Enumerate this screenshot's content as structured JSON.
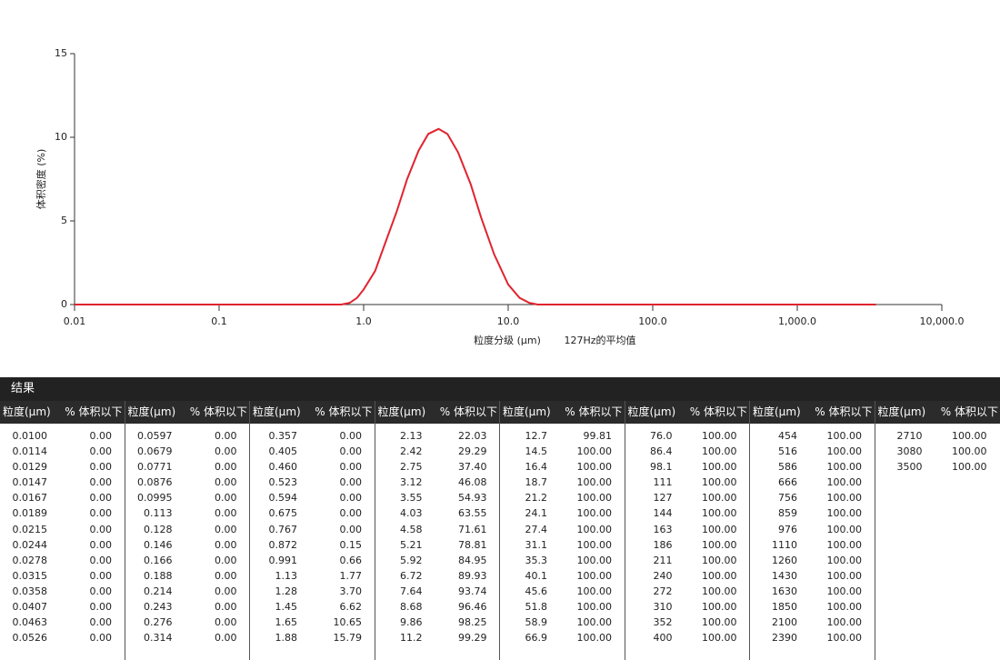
{
  "chart_data": {
    "type": "line",
    "y_label": "体积密度 (%)",
    "x_label": "粒度分级 (μm)",
    "x_note": "127Hz的平均值",
    "log_x": true,
    "color": "#e0242f",
    "x": [
      0.01,
      0.1,
      0.7,
      0.8,
      0.9,
      1.0,
      1.2,
      1.4,
      1.7,
      2.0,
      2.4,
      2.8,
      3.3,
      3.8,
      4.5,
      5.5,
      6.5,
      8,
      10,
      12,
      14,
      16,
      100,
      1000,
      3500
    ],
    "values": [
      0,
      0,
      0,
      0.1,
      0.4,
      0.9,
      2.0,
      3.6,
      5.6,
      7.5,
      9.2,
      10.2,
      10.5,
      10.2,
      9.1,
      7.2,
      5.2,
      3.0,
      1.2,
      0.4,
      0.1,
      0,
      0,
      0,
      0
    ],
    "xlim": [
      0.01,
      10000
    ],
    "ylim": [
      0,
      15
    ],
    "xticks": [
      0.01,
      0.1,
      {
        "value": 1,
        "label": "1.0"
      },
      {
        "value": 10,
        "label": "10.0"
      },
      {
        "value": 100,
        "label": "100.0"
      },
      {
        "value": 1000,
        "label": "1,000.0"
      },
      {
        "value": 10000,
        "label": "10,000.0"
      }
    ],
    "yticks": [
      0,
      5,
      10,
      15
    ]
  },
  "table": {
    "title": "结果",
    "groups": [
      {
        "header": [
          "粒度(μm)",
          "% 体积以下"
        ],
        "rows": [
          [
            "0.0100",
            "0.00"
          ],
          [
            "0.0114",
            "0.00"
          ],
          [
            "0.0129",
            "0.00"
          ],
          [
            "0.0147",
            "0.00"
          ],
          [
            "0.0167",
            "0.00"
          ],
          [
            "0.0189",
            "0.00"
          ],
          [
            "0.0215",
            "0.00"
          ],
          [
            "0.0244",
            "0.00"
          ],
          [
            "0.0278",
            "0.00"
          ],
          [
            "0.0315",
            "0.00"
          ],
          [
            "0.0358",
            "0.00"
          ],
          [
            "0.0407",
            "0.00"
          ],
          [
            "0.0463",
            "0.00"
          ],
          [
            "0.0526",
            "0.00"
          ]
        ]
      },
      {
        "header": [
          "粒度(μm)",
          "% 体积以下"
        ],
        "rows": [
          [
            "0.0597",
            "0.00"
          ],
          [
            "0.0679",
            "0.00"
          ],
          [
            "0.0771",
            "0.00"
          ],
          [
            "0.0876",
            "0.00"
          ],
          [
            "0.0995",
            "0.00"
          ],
          [
            "0.113",
            "0.00"
          ],
          [
            "0.128",
            "0.00"
          ],
          [
            "0.146",
            "0.00"
          ],
          [
            "0.166",
            "0.00"
          ],
          [
            "0.188",
            "0.00"
          ],
          [
            "0.214",
            "0.00"
          ],
          [
            "0.243",
            "0.00"
          ],
          [
            "0.276",
            "0.00"
          ],
          [
            "0.314",
            "0.00"
          ]
        ]
      },
      {
        "header": [
          "粒度(μm)",
          "% 体积以下"
        ],
        "rows": [
          [
            "0.357",
            "0.00"
          ],
          [
            "0.405",
            "0.00"
          ],
          [
            "0.460",
            "0.00"
          ],
          [
            "0.523",
            "0.00"
          ],
          [
            "0.594",
            "0.00"
          ],
          [
            "0.675",
            "0.00"
          ],
          [
            "0.767",
            "0.00"
          ],
          [
            "0.872",
            "0.15"
          ],
          [
            "0.991",
            "0.66"
          ],
          [
            "1.13",
            "1.77"
          ],
          [
            "1.28",
            "3.70"
          ],
          [
            "1.45",
            "6.62"
          ],
          [
            "1.65",
            "10.65"
          ],
          [
            "1.88",
            "15.79"
          ]
        ]
      },
      {
        "header": [
          "粒度(μm)",
          "% 体积以下"
        ],
        "rows": [
          [
            "2.13",
            "22.03"
          ],
          [
            "2.42",
            "29.29"
          ],
          [
            "2.75",
            "37.40"
          ],
          [
            "3.12",
            "46.08"
          ],
          [
            "3.55",
            "54.93"
          ],
          [
            "4.03",
            "63.55"
          ],
          [
            "4.58",
            "71.61"
          ],
          [
            "5.21",
            "78.81"
          ],
          [
            "5.92",
            "84.95"
          ],
          [
            "6.72",
            "89.93"
          ],
          [
            "7.64",
            "93.74"
          ],
          [
            "8.68",
            "96.46"
          ],
          [
            "9.86",
            "98.25"
          ],
          [
            "11.2",
            "99.29"
          ]
        ]
      },
      {
        "header": [
          "粒度(μm)",
          "% 体积以下"
        ],
        "rows": [
          [
            "12.7",
            "99.81"
          ],
          [
            "14.5",
            "100.00"
          ],
          [
            "16.4",
            "100.00"
          ],
          [
            "18.7",
            "100.00"
          ],
          [
            "21.2",
            "100.00"
          ],
          [
            "24.1",
            "100.00"
          ],
          [
            "27.4",
            "100.00"
          ],
          [
            "31.1",
            "100.00"
          ],
          [
            "35.3",
            "100.00"
          ],
          [
            "40.1",
            "100.00"
          ],
          [
            "45.6",
            "100.00"
          ],
          [
            "51.8",
            "100.00"
          ],
          [
            "58.9",
            "100.00"
          ],
          [
            "66.9",
            "100.00"
          ]
        ]
      },
      {
        "header": [
          "粒度(μm)",
          "% 体积以下"
        ],
        "rows": [
          [
            "76.0",
            "100.00"
          ],
          [
            "86.4",
            "100.00"
          ],
          [
            "98.1",
            "100.00"
          ],
          [
            "111",
            "100.00"
          ],
          [
            "127",
            "100.00"
          ],
          [
            "144",
            "100.00"
          ],
          [
            "163",
            "100.00"
          ],
          [
            "186",
            "100.00"
          ],
          [
            "211",
            "100.00"
          ],
          [
            "240",
            "100.00"
          ],
          [
            "272",
            "100.00"
          ],
          [
            "310",
            "100.00"
          ],
          [
            "352",
            "100.00"
          ],
          [
            "400",
            "100.00"
          ]
        ]
      },
      {
        "header": [
          "粒度(μm)",
          "% 体积以下"
        ],
        "rows": [
          [
            "454",
            "100.00"
          ],
          [
            "516",
            "100.00"
          ],
          [
            "586",
            "100.00"
          ],
          [
            "666",
            "100.00"
          ],
          [
            "756",
            "100.00"
          ],
          [
            "859",
            "100.00"
          ],
          [
            "976",
            "100.00"
          ],
          [
            "1110",
            "100.00"
          ],
          [
            "1260",
            "100.00"
          ],
          [
            "1430",
            "100.00"
          ],
          [
            "1630",
            "100.00"
          ],
          [
            "1850",
            "100.00"
          ],
          [
            "2100",
            "100.00"
          ],
          [
            "2390",
            "100.00"
          ]
        ]
      },
      {
        "header": [
          "粒度(μm)",
          "% 体积以下"
        ],
        "rows": [
          [
            "2710",
            "100.00"
          ],
          [
            "3080",
            "100.00"
          ],
          [
            "3500",
            "100.00"
          ]
        ]
      }
    ]
  }
}
